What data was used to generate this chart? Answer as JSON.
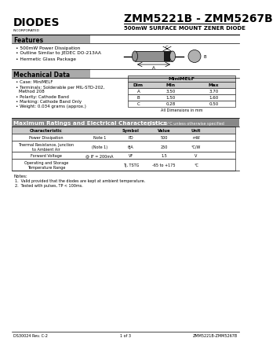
{
  "title": "ZMM5221B - ZMM5267B",
  "subtitle": "500mW SURFACE MOUNT ZENER DIODE",
  "company": "DIODES",
  "company_sub": "INCORPORATED",
  "features_title": "Features",
  "features": [
    "500mW Power Dissipation",
    "Outline Similar to JEDEC DO-213AA",
    "Hermetic Glass Package"
  ],
  "mech_title": "Mechanical Data",
  "mech_items": [
    "Case: MiniMELF",
    "Terminals: Solderable per MIL-STD-202,\n  Method 208",
    "Polarity: Cathode Band",
    "Marking: Cathode Band Only",
    "Weight: 0.034 grams (approx.)"
  ],
  "table1_title": "MiniMELF",
  "table1_headers": [
    "Dim",
    "Min",
    "Max"
  ],
  "table1_rows": [
    [
      "A",
      "3.50",
      "3.70"
    ],
    [
      "B",
      "1.50",
      "1.60"
    ],
    [
      "C",
      "0.28",
      "0.50"
    ]
  ],
  "table1_note": "All Dimensions in mm",
  "max_ratings_title": "Maximum Ratings and Electrical Characteristics",
  "max_ratings_note": "@ TA = 25°C unless otherwise specified",
  "notes": [
    "1.  Valid provided that the diodes are kept at ambient temperature.",
    "2.  Tested with pulses, TP < 100ms."
  ],
  "footer_left": "DS30024 Rev. C-2",
  "footer_center": "1 of 3",
  "footer_right": "ZMM5221B-ZMM5267B",
  "bg_color": "#ffffff",
  "section_title_bg": "#aaaaaa",
  "ratings_title_bg": "#888888",
  "table_header_bg": "#cccccc"
}
